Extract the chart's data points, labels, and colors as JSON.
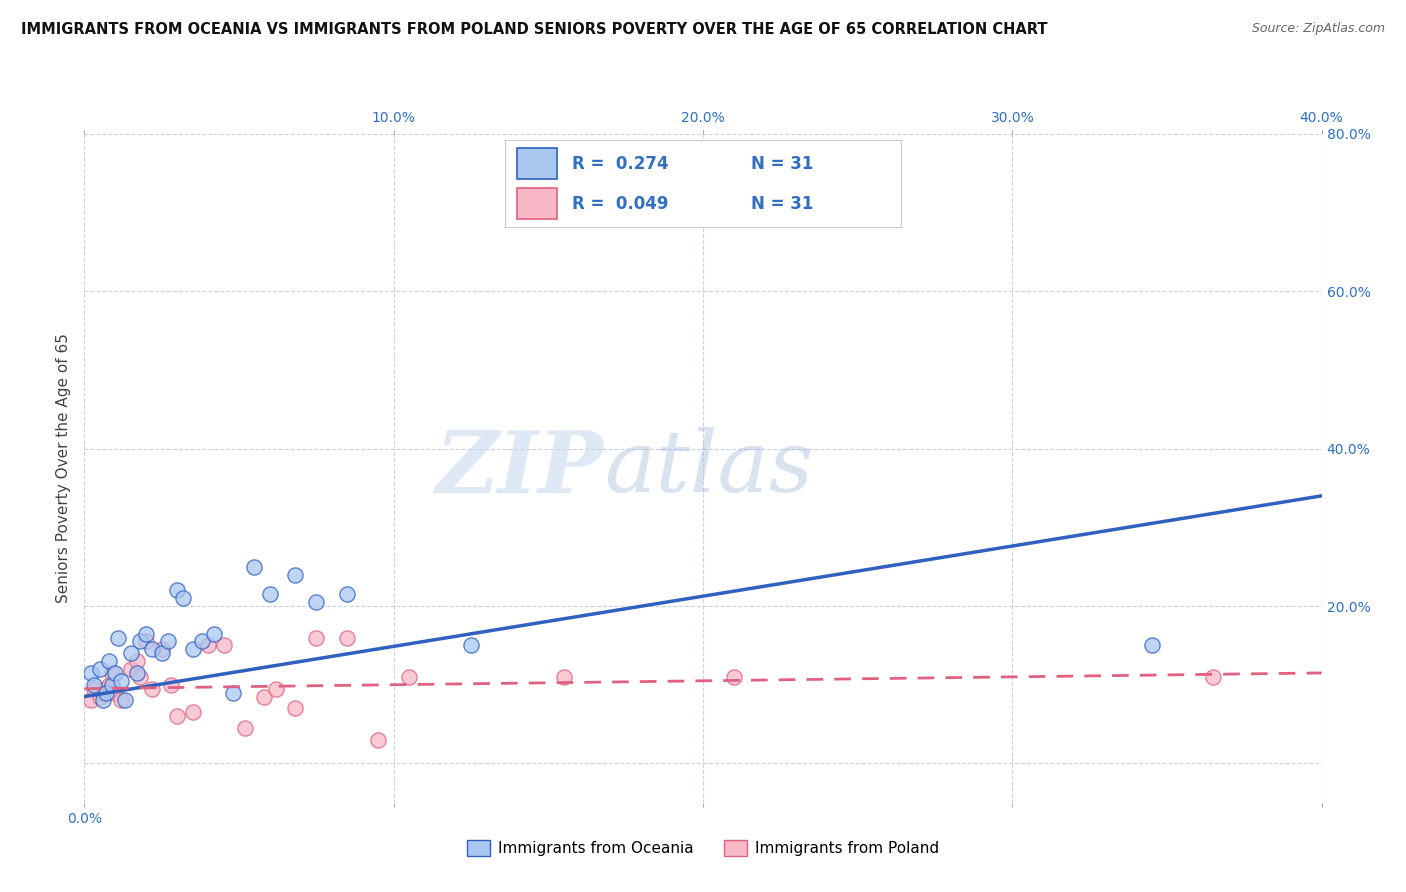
{
  "title": "IMMIGRANTS FROM OCEANIA VS IMMIGRANTS FROM POLAND SENIORS POVERTY OVER THE AGE OF 65 CORRELATION CHART",
  "source": "Source: ZipAtlas.com",
  "ylabel": "Seniors Poverty Over the Age of 65",
  "xlabel": "",
  "legend_label1": "Immigrants from Oceania",
  "legend_label2": "Immigrants from Poland",
  "r1": 0.274,
  "n1": 31,
  "r2": 0.049,
  "n2": 31,
  "color1": "#a8c8f0",
  "color2": "#f8b8c8",
  "line_color1": "#3060c0",
  "line_color2": "#e06080",
  "xlim": [
    0.0,
    0.4
  ],
  "ylim": [
    -0.05,
    0.8
  ],
  "xticks": [
    0.0,
    0.1,
    0.2,
    0.3,
    0.4
  ],
  "yticks": [
    0.0,
    0.2,
    0.4,
    0.6,
    0.8
  ],
  "ytick_labels": [
    "",
    "20.0%",
    "40.0%",
    "60.0%",
    "80.0%"
  ],
  "xtick_labels": [
    "0.0%",
    "",
    "",
    "",
    ""
  ],
  "xtick_labels_right": [
    "",
    "10.0%",
    "20.0%",
    "30.0%",
    "40.0%"
  ],
  "watermark_zip": "ZIP",
  "watermark_atlas": "atlas",
  "background_color": "#ffffff",
  "grid_color": "#c0d0e0",
  "oceania_x": [
    0.002,
    0.003,
    0.005,
    0.006,
    0.007,
    0.008,
    0.009,
    0.01,
    0.011,
    0.012,
    0.013,
    0.015,
    0.017,
    0.018,
    0.02,
    0.022,
    0.025,
    0.027,
    0.03,
    0.032,
    0.035,
    0.038,
    0.042,
    0.048,
    0.055,
    0.06,
    0.068,
    0.075,
    0.085,
    0.125,
    0.345
  ],
  "oceania_y": [
    0.115,
    0.1,
    0.12,
    0.08,
    0.09,
    0.13,
    0.1,
    0.115,
    0.16,
    0.105,
    0.08,
    0.14,
    0.115,
    0.155,
    0.165,
    0.145,
    0.14,
    0.155,
    0.22,
    0.21,
    0.145,
    0.155,
    0.165,
    0.09,
    0.25,
    0.215,
    0.24,
    0.205,
    0.215,
    0.15,
    0.15
  ],
  "poland_x": [
    0.002,
    0.003,
    0.005,
    0.006,
    0.007,
    0.008,
    0.009,
    0.01,
    0.012,
    0.015,
    0.017,
    0.018,
    0.02,
    0.022,
    0.025,
    0.028,
    0.03,
    0.035,
    0.04,
    0.045,
    0.052,
    0.058,
    0.062,
    0.068,
    0.075,
    0.085,
    0.095,
    0.105,
    0.155,
    0.21,
    0.365
  ],
  "poland_y": [
    0.08,
    0.095,
    0.085,
    0.09,
    0.095,
    0.1,
    0.115,
    0.09,
    0.08,
    0.12,
    0.13,
    0.11,
    0.155,
    0.095,
    0.145,
    0.1,
    0.06,
    0.065,
    0.15,
    0.15,
    0.045,
    0.085,
    0.095,
    0.07,
    0.16,
    0.16,
    0.03,
    0.11,
    0.11,
    0.11,
    0.11
  ]
}
